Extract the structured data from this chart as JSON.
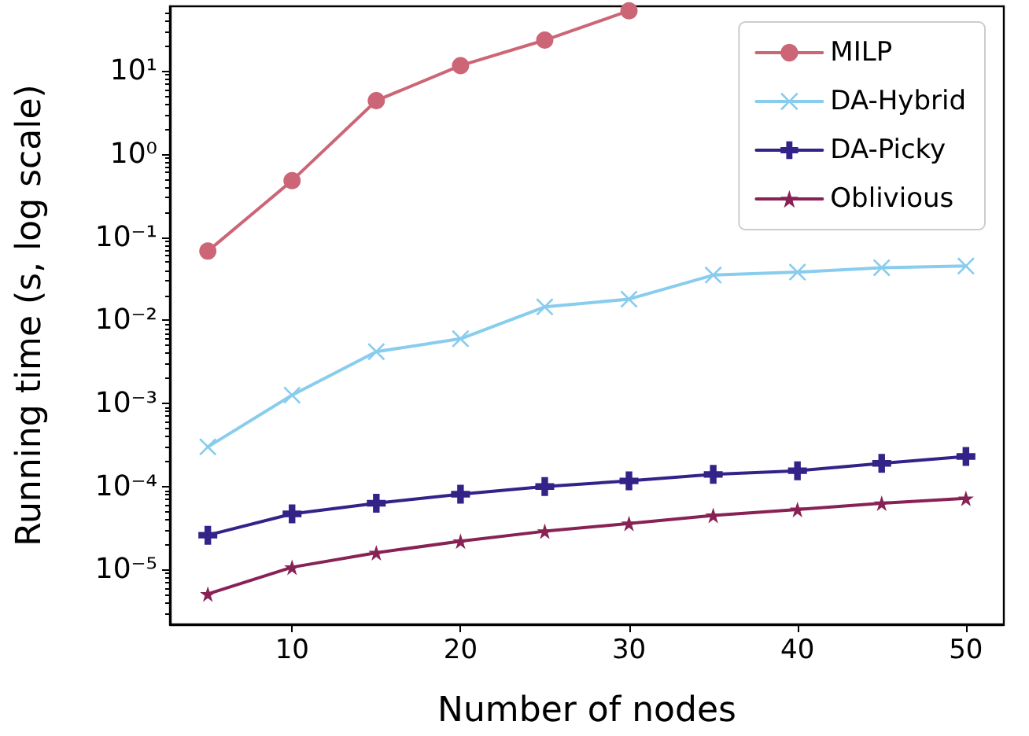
{
  "chart_data": {
    "type": "line",
    "xlabel": "Number of nodes",
    "ylabel": "Running time (s, log scale)",
    "x": [
      5,
      10,
      15,
      20,
      25,
      30,
      35,
      40,
      45,
      50
    ],
    "series": [
      {
        "name": "MILP",
        "color": "#cc6677",
        "marker": "circle",
        "values": [
          0.068,
          0.48,
          4.4,
          11.6,
          23.5,
          53,
          null,
          null,
          null,
          null
        ]
      },
      {
        "name": "DA-Hybrid",
        "color": "#88ccee",
        "marker": "cross",
        "values": [
          0.0003,
          0.00126,
          0.0042,
          0.006,
          0.0145,
          0.018,
          0.035,
          0.038,
          0.043,
          0.045
        ]
      },
      {
        "name": "DA-Picky",
        "color": "#332288",
        "marker": "plus",
        "values": [
          2.6e-05,
          4.7e-05,
          6.3e-05,
          8.1e-05,
          0.0001,
          0.000117,
          0.00014,
          0.000155,
          0.00019,
          0.00023
        ]
      },
      {
        "name": "Oblivious",
        "color": "#882255",
        "marker": "star",
        "values": [
          5.1e-06,
          1.07e-05,
          1.6e-05,
          2.2e-05,
          2.9e-05,
          3.6e-05,
          4.5e-05,
          5.3e-05,
          6.3e-05,
          7.2e-05
        ]
      }
    ],
    "log": "y",
    "xlim": [
      2.75,
      52.25
    ],
    "xticks": [
      10,
      20,
      30,
      40,
      50
    ],
    "ylim": [
      2.2e-06,
      60
    ],
    "yticks": [
      {
        "value": 1e-05,
        "label": "10⁻⁵"
      },
      {
        "value": 0.0001,
        "label": "10⁻⁴"
      },
      {
        "value": 0.001,
        "label": "10⁻³"
      },
      {
        "value": 0.01,
        "label": "10⁻²"
      },
      {
        "value": 0.1,
        "label": "10⁻¹"
      },
      {
        "value": 1,
        "label": "10⁰"
      },
      {
        "value": 10,
        "label": "10¹"
      }
    ],
    "legend": "top right",
    "grid": false
  }
}
